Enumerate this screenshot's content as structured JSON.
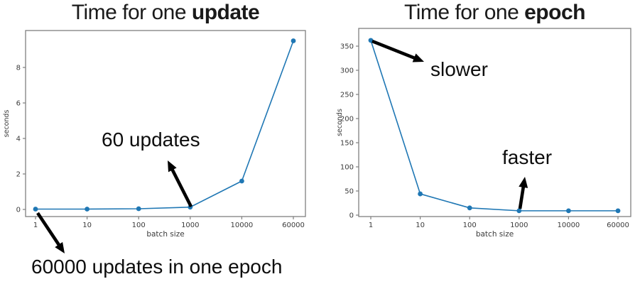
{
  "page": {
    "background": "#ffffff"
  },
  "colors": {
    "line": "#1f77b4",
    "marker": "#1f77b4",
    "axis": "#7f7f7f",
    "tick_text": "#3b3b3b",
    "annotation_text": "#0d0d0d",
    "arrow": "#000000"
  },
  "chart_data": [
    {
      "id": "update-time",
      "type": "line",
      "title_prefix": "Time for one ",
      "title_bold": "update",
      "categories": [
        "1",
        "10",
        "100",
        "1000",
        "10000",
        "60000"
      ],
      "values": [
        0.02,
        0.02,
        0.04,
        0.13,
        1.6,
        9.5
      ],
      "xlabel": "batch size",
      "ylabel": "seconds",
      "ylim": [
        0,
        10
      ],
      "yticks": [
        0,
        2,
        4,
        6,
        8
      ],
      "x_scale": "log-like categorical",
      "grid": false,
      "legend": null,
      "annotations": [
        {
          "text": "60 updates",
          "points_to": "batch size 1000 data point"
        },
        {
          "text": "60000 updates in one epoch",
          "points_from": "batch size 1 data point"
        }
      ]
    },
    {
      "id": "epoch-time",
      "type": "line",
      "title_prefix": "Time for one ",
      "title_bold": "epoch",
      "categories": [
        "1",
        "10",
        "100",
        "1000",
        "10000",
        "60000"
      ],
      "values": [
        362,
        44,
        15,
        9,
        9,
        9
      ],
      "xlabel": "batch size",
      "ylabel": "seconds",
      "ylim": [
        0,
        380
      ],
      "yticks": [
        0,
        50,
        100,
        150,
        200,
        250,
        300,
        350
      ],
      "x_scale": "log-like categorical",
      "grid": false,
      "legend": null,
      "annotations": [
        {
          "text": "slower",
          "points_from": "batch size 1 data point"
        },
        {
          "text": "faster",
          "points_to": "batch size 1000 data point"
        }
      ]
    }
  ]
}
